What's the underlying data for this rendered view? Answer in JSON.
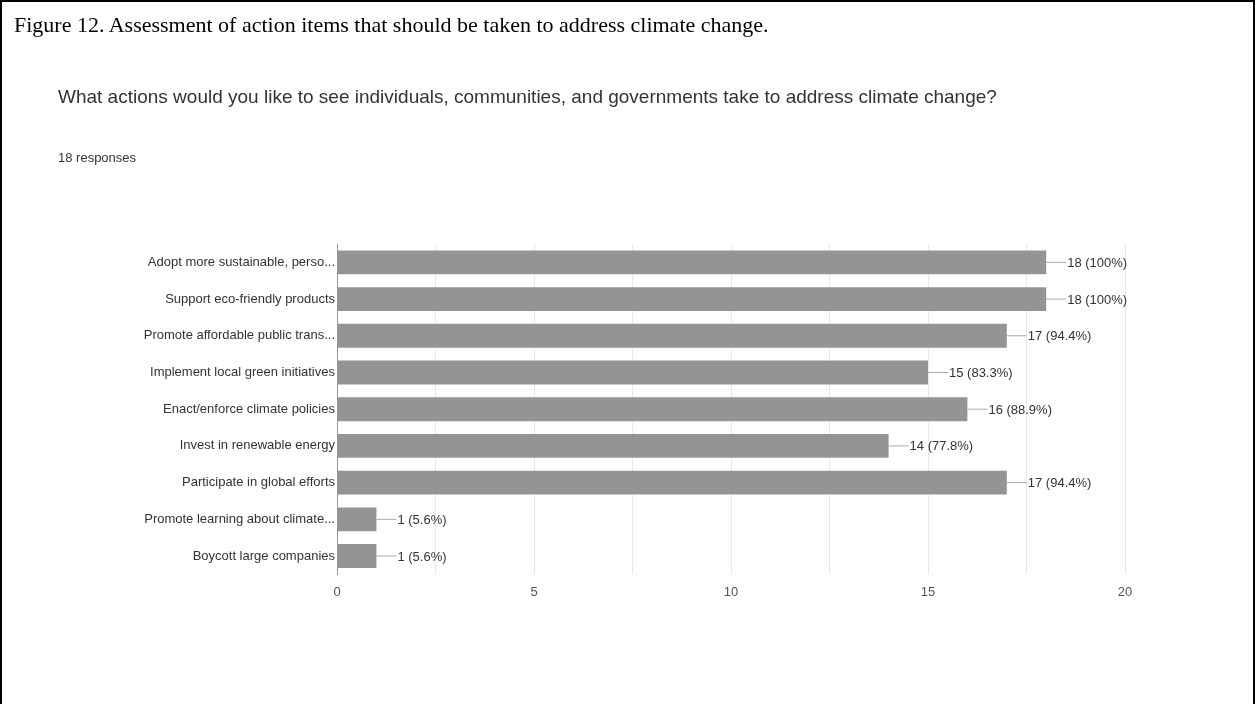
{
  "chart_data": {
    "type": "bar",
    "orientation": "horizontal",
    "title": "What actions would you like to see individuals, communities, and governments take to address climate change?",
    "subtitle": "18 responses",
    "annotations": [
      "Figure 12. Assessment of action items that should be taken to address climate change."
    ],
    "categories": [
      "Adopt more sustainable, perso...",
      "Support eco-friendly products",
      "Promote affordable public trans...",
      "Implement local green initiatives",
      "Enact/enforce climate policies",
      "Invest in renewable energy",
      "Participate in global efforts",
      "Promote learning about climate...",
      "Boycott large companies"
    ],
    "values": [
      18,
      18,
      17,
      15,
      16,
      14,
      17,
      1,
      1
    ],
    "value_labels": [
      "18 (100%)",
      "18 (100%)",
      "17 (94.4%)",
      "15 (83.3%)",
      "16 (88.9%)",
      "14 (77.8%)",
      "17 (94.4%)",
      "1 (5.6%)",
      "1 (5.6%)"
    ],
    "color": "#949494",
    "xlim": [
      0,
      20
    ],
    "xticks": [
      0,
      {
        "value": 2.5,
        "label": null
      },
      5,
      {
        "value": 7.5,
        "label": null
      },
      10,
      {
        "value": 12.5,
        "label": null
      },
      15,
      {
        "value": 17.5,
        "label": null
      },
      20
    ],
    "grid": "x",
    "legend": false
  }
}
